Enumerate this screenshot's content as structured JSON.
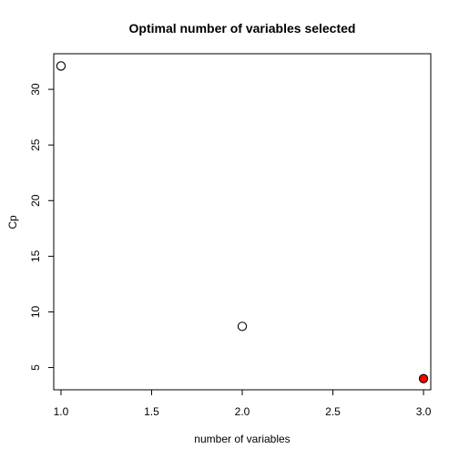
{
  "chart_data": {
    "type": "scatter",
    "title": "Optimal number of variables selected",
    "xlabel": "number of variables",
    "ylabel": "Cp",
    "xlim": [
      0.96,
      3.04
    ],
    "ylim": [
      3.0,
      33.2
    ],
    "x_ticks": [
      1.0,
      1.5,
      2.0,
      2.5,
      3.0
    ],
    "x_tick_labels": [
      "1.0",
      "1.5",
      "2.0",
      "2.5",
      "3.0"
    ],
    "y_ticks": [
      5,
      10,
      15,
      20,
      25,
      30
    ],
    "y_tick_labels": [
      "5",
      "10",
      "15",
      "20",
      "25",
      "30"
    ],
    "grid": false,
    "legend": "none",
    "x": [
      1,
      2,
      3
    ],
    "values": [
      32.1,
      8.7,
      4.0
    ],
    "highlight_index": 2,
    "highlight_color": "#ff0000",
    "marker_color": "#000000"
  }
}
